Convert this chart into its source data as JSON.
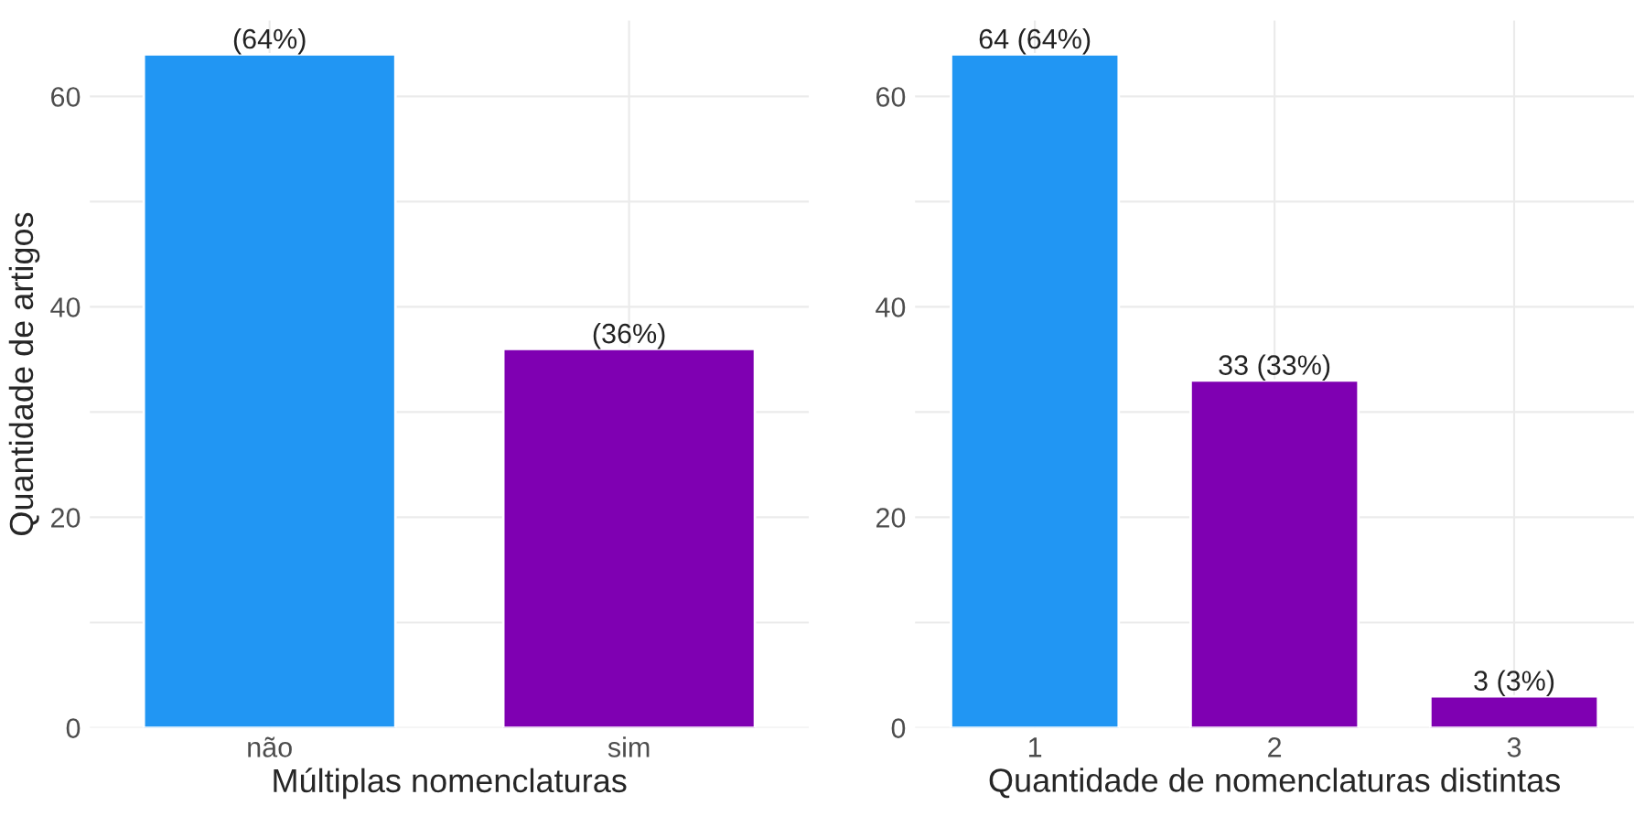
{
  "chart_data": [
    {
      "type": "bar",
      "xlabel": "Múltiplas nomenclaturas",
      "ylabel": "Quantidade de artigos",
      "categories": [
        "não",
        "sim"
      ],
      "values": [
        64,
        36
      ],
      "colors": [
        "#2196f3",
        "#7f00b2"
      ],
      "value_labels": [
        "(64%)",
        "(36%)"
      ],
      "ylim": [
        0,
        67.2
      ],
      "yticks": [
        0,
        {
          "value": 10,
          "label": null
        },
        20,
        {
          "value": 30,
          "label": null
        },
        40,
        {
          "value": 50,
          "label": null
        },
        60
      ],
      "grid": true,
      "legend": false
    },
    {
      "type": "bar",
      "xlabel": "Quantidade de nomenclaturas distintas",
      "categories": [
        "1",
        "2",
        "3"
      ],
      "values": [
        64,
        33,
        3
      ],
      "colors": [
        "#2196f3",
        "#7f00b2",
        "#7f00b2"
      ],
      "value_labels": [
        "64 (64%)",
        "33 (33%)",
        "3 (3%)"
      ],
      "ylim": [
        0,
        67.2
      ],
      "yticks": [
        0,
        {
          "value": 10,
          "label": null
        },
        20,
        {
          "value": 30,
          "label": null
        },
        40,
        {
          "value": 50,
          "label": null
        },
        60
      ],
      "grid": true,
      "legend": false
    }
  ]
}
